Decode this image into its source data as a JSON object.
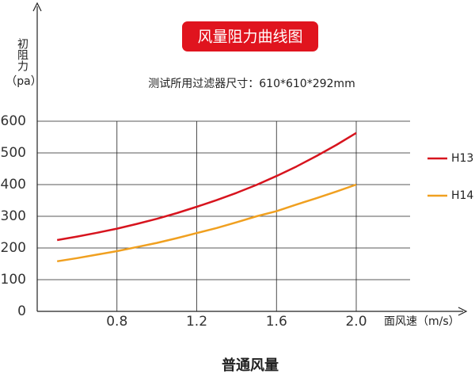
{
  "chart_data": {
    "type": "line",
    "title": "风量阻力曲线图",
    "subtitle": "测试所用过滤器尺寸：610*610*292mm",
    "y_label": "初阻力",
    "y_unit": "（pa）",
    "x_label": "面风速（m/s）",
    "caption": "普通风量",
    "x": [
      0.5,
      0.6,
      0.7,
      0.8,
      0.9,
      1.0,
      1.1,
      1.2,
      1.3,
      1.4,
      1.5,
      1.6,
      1.7,
      1.8,
      1.9,
      2.0
    ],
    "series": [
      {
        "name": "H13",
        "color": "#d7141e",
        "values": [
          225,
          236,
          248,
          261,
          276,
          292,
          310,
          330,
          351,
          374,
          399,
          427,
          457,
          490,
          525,
          563
        ]
      },
      {
        "name": "H14",
        "color": "#f0a020",
        "values": [
          158,
          168,
          179,
          190,
          203,
          216,
          231,
          247,
          263,
          281,
          300,
          316,
          337,
          357,
          378,
          400
        ]
      }
    ],
    "xlim": [
      0.4,
      2.27
    ],
    "ylim": [
      0,
      600
    ],
    "xticks": [
      0.8,
      1.2,
      1.6,
      {
        "value": 2,
        "label": "2.0"
      }
    ],
    "yticks": [
      0,
      100,
      200,
      300,
      400,
      500,
      600
    ],
    "grid": true,
    "legend": "right"
  }
}
